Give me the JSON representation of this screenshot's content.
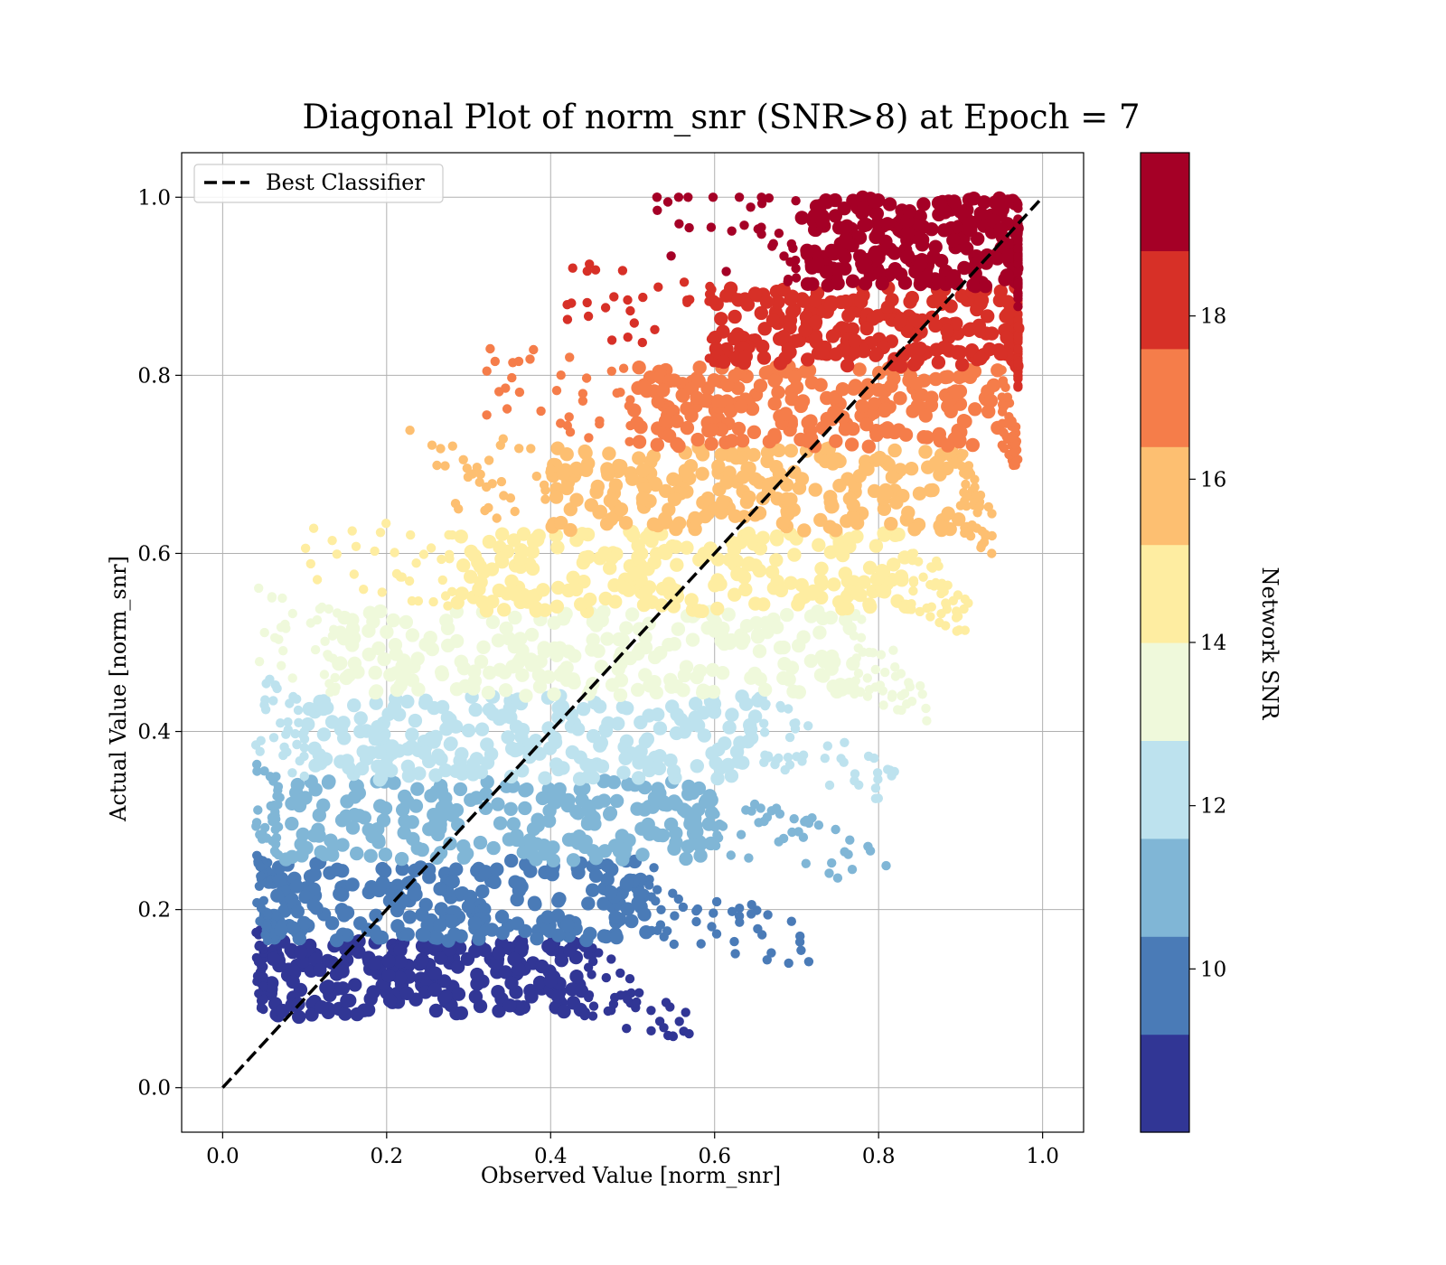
{
  "chart_data": {
    "type": "scatter",
    "title": "Diagonal Plot of norm_snr (SNR>8) at Epoch = 7",
    "xlabel": "Observed Value [norm_snr]",
    "ylabel": "Actual Value [norm_snr]",
    "xlim": [
      -0.05,
      1.05
    ],
    "ylim": [
      -0.05,
      1.05
    ],
    "x_ticks": [
      "0.0",
      "0.2",
      "0.4",
      "0.6",
      "0.8",
      "1.0"
    ],
    "y_ticks": [
      "0.0",
      "0.2",
      "0.4",
      "0.6",
      "0.8",
      "1.0"
    ],
    "x_tick_values": [
      0.0,
      0.2,
      0.4,
      0.6,
      0.8,
      1.0
    ],
    "y_tick_values": [
      0.0,
      0.2,
      0.4,
      0.6,
      0.8,
      1.0
    ],
    "grid": true,
    "legend": {
      "placement": "upper-left",
      "entries": [
        {
          "label": "Best Classifier",
          "style": "dashed",
          "color": "#000000"
        }
      ]
    },
    "reference_line": {
      "x": [
        0.0,
        1.0
      ],
      "y": [
        0.0,
        1.0
      ]
    },
    "colorbar": {
      "label": "Network SNR",
      "range": [
        8,
        20
      ],
      "tick_values": [
        10,
        12,
        14,
        16,
        18
      ],
      "ticks": [
        "10",
        "12",
        "14",
        "16",
        "18"
      ],
      "colors": [
        "#313695",
        "#4a7bb7",
        "#80b6d6",
        "#bde2ee",
        "#eff9db",
        "#feeda1",
        "#fdbf71",
        "#f57d4a",
        "#d73027",
        "#a50026"
      ]
    },
    "bands": [
      {
        "snr_bin": [
          8.0,
          9.2
        ],
        "color": "#313695",
        "y_range": [
          0.078,
          0.165
        ],
        "x_core": [
          0.05,
          0.44
        ],
        "x_scatter_max": 0.57
      },
      {
        "snr_bin": [
          9.2,
          10.4
        ],
        "color": "#4a7bb7",
        "y_range": [
          0.165,
          0.255
        ],
        "x_core": [
          0.055,
          0.52
        ],
        "x_scatter_max": 0.72
      },
      {
        "snr_bin": [
          10.4,
          11.6
        ],
        "color": "#80b6d6",
        "y_range": [
          0.255,
          0.345
        ],
        "x_core": [
          0.07,
          0.6
        ],
        "x_scatter_max": 0.82
      },
      {
        "snr_bin": [
          11.6,
          12.8
        ],
        "color": "#bde2ee",
        "y_range": [
          0.345,
          0.44
        ],
        "x_core": [
          0.1,
          0.66
        ],
        "x_scatter_max": 0.82
      },
      {
        "snr_bin": [
          12.8,
          14.0
        ],
        "color": "#eff9db",
        "y_range": [
          0.44,
          0.535
        ],
        "x_core": [
          0.14,
          0.77
        ],
        "x_scatter_max": 0.86
      },
      {
        "snr_bin": [
          14.0,
          15.2
        ],
        "color": "#feeda1",
        "y_range": [
          0.535,
          0.625
        ],
        "x_core": [
          0.28,
          0.84
        ],
        "x_scatter_max": 0.91
      },
      {
        "snr_bin": [
          15.2,
          16.4
        ],
        "color": "#fdbf71",
        "y_range": [
          0.625,
          0.72
        ],
        "x_core": [
          0.4,
          0.9
        ],
        "x_scatter_max": 0.94
      },
      {
        "snr_bin": [
          16.4,
          17.6
        ],
        "color": "#f57d4a",
        "y_range": [
          0.72,
          0.81
        ],
        "x_core": [
          0.5,
          0.95
        ],
        "x_scatter_max": 0.97
      },
      {
        "snr_bin": [
          17.6,
          18.8
        ],
        "color": "#d73027",
        "y_range": [
          0.81,
          0.9
        ],
        "x_core": [
          0.6,
          0.97
        ],
        "x_scatter_max": 0.97
      },
      {
        "snr_bin": [
          18.8,
          20.0
        ],
        "color": "#a50026",
        "y_range": [
          0.9,
          1.0
        ],
        "x_core": [
          0.7,
          0.97
        ],
        "x_scatter_max": 0.97
      }
    ]
  }
}
